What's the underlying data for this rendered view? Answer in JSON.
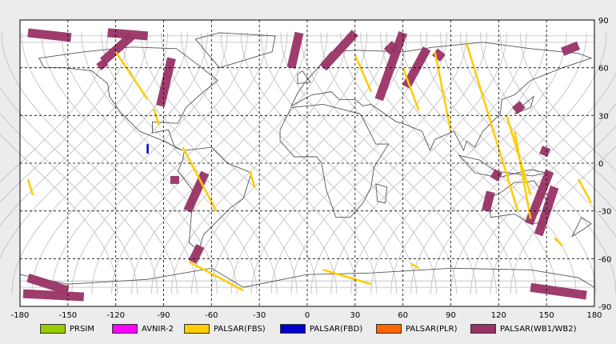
{
  "map": {
    "lon_ticks": [
      "-180",
      "-150",
      "-120",
      "-90",
      "-60",
      "-30",
      "0",
      "30",
      "60",
      "90",
      "120",
      "150",
      "180"
    ],
    "lat_ticks": [
      "90",
      "60",
      "30",
      "0",
      "-30",
      "-60",
      "-90"
    ],
    "lon_range": [
      -180,
      180
    ],
    "lat_range": [
      -90,
      90
    ],
    "grid": "dashed",
    "background": "#ffffff",
    "coastline_color": "#555555",
    "track_color": "#bbbbbb",
    "observed_segments": [
      {
        "sensor": "PALSAR(WB1/WB2)",
        "lon": [
          -175,
          -148
        ],
        "lat": [
          82,
          79
        ]
      },
      {
        "sensor": "PALSAR(WB1/WB2)",
        "lon": [
          -125,
          -100
        ],
        "lat": [
          82,
          80
        ]
      },
      {
        "sensor": "PALSAR(WB1/WB2)",
        "lon": [
          -110,
          -128
        ],
        "lat": [
          80,
          64
        ]
      },
      {
        "sensor": "PALSAR(WB1/WB2)",
        "lon": [
          -85,
          -92
        ],
        "lat": [
          66,
          36
        ]
      },
      {
        "sensor": "PALSAR(WB1/WB2)",
        "lon": [
          -130,
          -127
        ],
        "lat": [
          64,
          60
        ]
      },
      {
        "sensor": "PALSAR(WB1/WB2)",
        "lon": [
          -64,
          -75
        ],
        "lat": [
          -6,
          -30
        ]
      },
      {
        "sensor": "PALSAR(WB1/WB2)",
        "lon": [
          -67,
          -72
        ],
        "lat": [
          -52,
          -62
        ]
      },
      {
        "sensor": "PALSAR(WB1/WB2)",
        "lon": [
          -83,
          -83
        ],
        "lat": [
          -8,
          -13
        ]
      },
      {
        "sensor": "PALSAR(WB1/WB2)",
        "lon": [
          -5,
          -10
        ],
        "lat": [
          82,
          60
        ]
      },
      {
        "sensor": "PALSAR(WB1/WB2)",
        "lon": [
          30,
          10
        ],
        "lat": [
          82,
          60
        ]
      },
      {
        "sensor": "PALSAR(WB1/WB2)",
        "lon": [
          60,
          45
        ],
        "lat": [
          82,
          40
        ]
      },
      {
        "sensor": "PALSAR(WB1/WB2)",
        "lon": [
          75,
          62
        ],
        "lat": [
          72,
          48
        ]
      },
      {
        "sensor": "PALSAR(WB1/WB2)",
        "lon": [
          80,
          85
        ],
        "lat": [
          70,
          66
        ]
      },
      {
        "sensor": "PALSAR(WB1/WB2)",
        "lon": [
          55,
          50
        ],
        "lat": [
          75,
          70
        ]
      },
      {
        "sensor": "PALSAR(WB1/WB2)",
        "lon": [
          135,
          130
        ],
        "lat": [
          37,
          33
        ]
      },
      {
        "sensor": "PALSAR(WB1/WB2)",
        "lon": [
          150,
          148
        ],
        "lat": [
          10,
          5
        ]
      },
      {
        "sensor": "PALSAR(WB1/WB2)",
        "lon": [
          120,
          117
        ],
        "lat": [
          -5,
          -10
        ]
      },
      {
        "sensor": "PALSAR(WB1/WB2)",
        "lon": [
          152,
          139
        ],
        "lat": [
          -5,
          -38
        ]
      },
      {
        "sensor": "PALSAR(WB1/WB2)",
        "lon": [
          155,
          145
        ],
        "lat": [
          -15,
          -45
        ]
      },
      {
        "sensor": "PALSAR(WB1/WB2)",
        "lon": [
          115,
          112
        ],
        "lat": [
          -18,
          -30
        ]
      },
      {
        "sensor": "PALSAR(WB1/WB2)",
        "lon": [
          160,
          170
        ],
        "lat": [
          70,
          74
        ]
      },
      {
        "sensor": "PALSAR(WB1/WB2)",
        "lon": [
          -175,
          -150
        ],
        "lat": [
          -72,
          -80
        ]
      },
      {
        "sensor": "PALSAR(WB1/WB2)",
        "lon": [
          -178,
          -140
        ],
        "lat": [
          -82,
          -84
        ]
      },
      {
        "sensor": "PALSAR(WB1/WB2)",
        "lon": [
          140,
          175
        ],
        "lat": [
          -78,
          -83
        ]
      },
      {
        "sensor": "PALSAR(FBS)",
        "lon": [
          -120,
          -100
        ],
        "lat": [
          70,
          40
        ]
      },
      {
        "sensor": "PALSAR(FBS)",
        "lon": [
          -78,
          -57
        ],
        "lat": [
          10,
          -30
        ]
      },
      {
        "sensor": "PALSAR(FBS)",
        "lon": [
          -74,
          -40
        ],
        "lat": [
          -62,
          -80
        ]
      },
      {
        "sensor": "PALSAR(FBS)",
        "lon": [
          10,
          40
        ],
        "lat": [
          -67,
          -76
        ]
      },
      {
        "sensor": "PALSAR(FBS)",
        "lon": [
          30,
          40
        ],
        "lat": [
          68,
          45
        ]
      },
      {
        "sensor": "PALSAR(FBS)",
        "lon": [
          60,
          70
        ],
        "lat": [
          60,
          33
        ]
      },
      {
        "sensor": "PALSAR(FBS)",
        "lon": [
          80,
          90
        ],
        "lat": [
          70,
          20
        ]
      },
      {
        "sensor": "PALSAR(FBS)",
        "lon": [
          100,
          132
        ],
        "lat": [
          75,
          -30
        ]
      },
      {
        "sensor": "PALSAR(FBS)",
        "lon": [
          125,
          140
        ],
        "lat": [
          30,
          -20
        ]
      },
      {
        "sensor": "PALSAR(FBS)",
        "lon": [
          130,
          140
        ],
        "lat": [
          20,
          -35
        ]
      },
      {
        "sensor": "PALSAR(FBS)",
        "lon": [
          170,
          178
        ],
        "lat": [
          -10,
          -25
        ]
      },
      {
        "sensor": "PALSAR(FBS)",
        "lon": [
          -175,
          -172
        ],
        "lat": [
          -10,
          -20
        ]
      },
      {
        "sensor": "PALSAR(FBS)",
        "lon": [
          -96,
          -93
        ],
        "lat": [
          34,
          24
        ]
      },
      {
        "sensor": "PALSAR(FBS)",
        "lon": [
          -36,
          -33
        ],
        "lat": [
          -5,
          -15
        ]
      },
      {
        "sensor": "PALSAR(FBS)",
        "lon": [
          65,
          70
        ],
        "lat": [
          -63,
          -66
        ]
      },
      {
        "sensor": "PALSAR(FBS)",
        "lon": [
          155,
          160
        ],
        "lat": [
          -47,
          -52
        ]
      },
      {
        "sensor": "PALSAR(FBD)",
        "lon": [
          -100,
          -100
        ],
        "lat": [
          12,
          6
        ]
      }
    ]
  },
  "legend": [
    {
      "label": "PRSIM",
      "color": "#99cc00"
    },
    {
      "label": "AVNIR-2",
      "color": "#ff00ff"
    },
    {
      "label": "PALSAR(FBS)",
      "color": "#ffcc00"
    },
    {
      "label": "PALSAR(FBD)",
      "color": "#0000cc"
    },
    {
      "label": "PALSAR(PLR)",
      "color": "#ff6600"
    },
    {
      "label": "PALSAR(WB1/WB2)",
      "color": "#993366"
    }
  ]
}
